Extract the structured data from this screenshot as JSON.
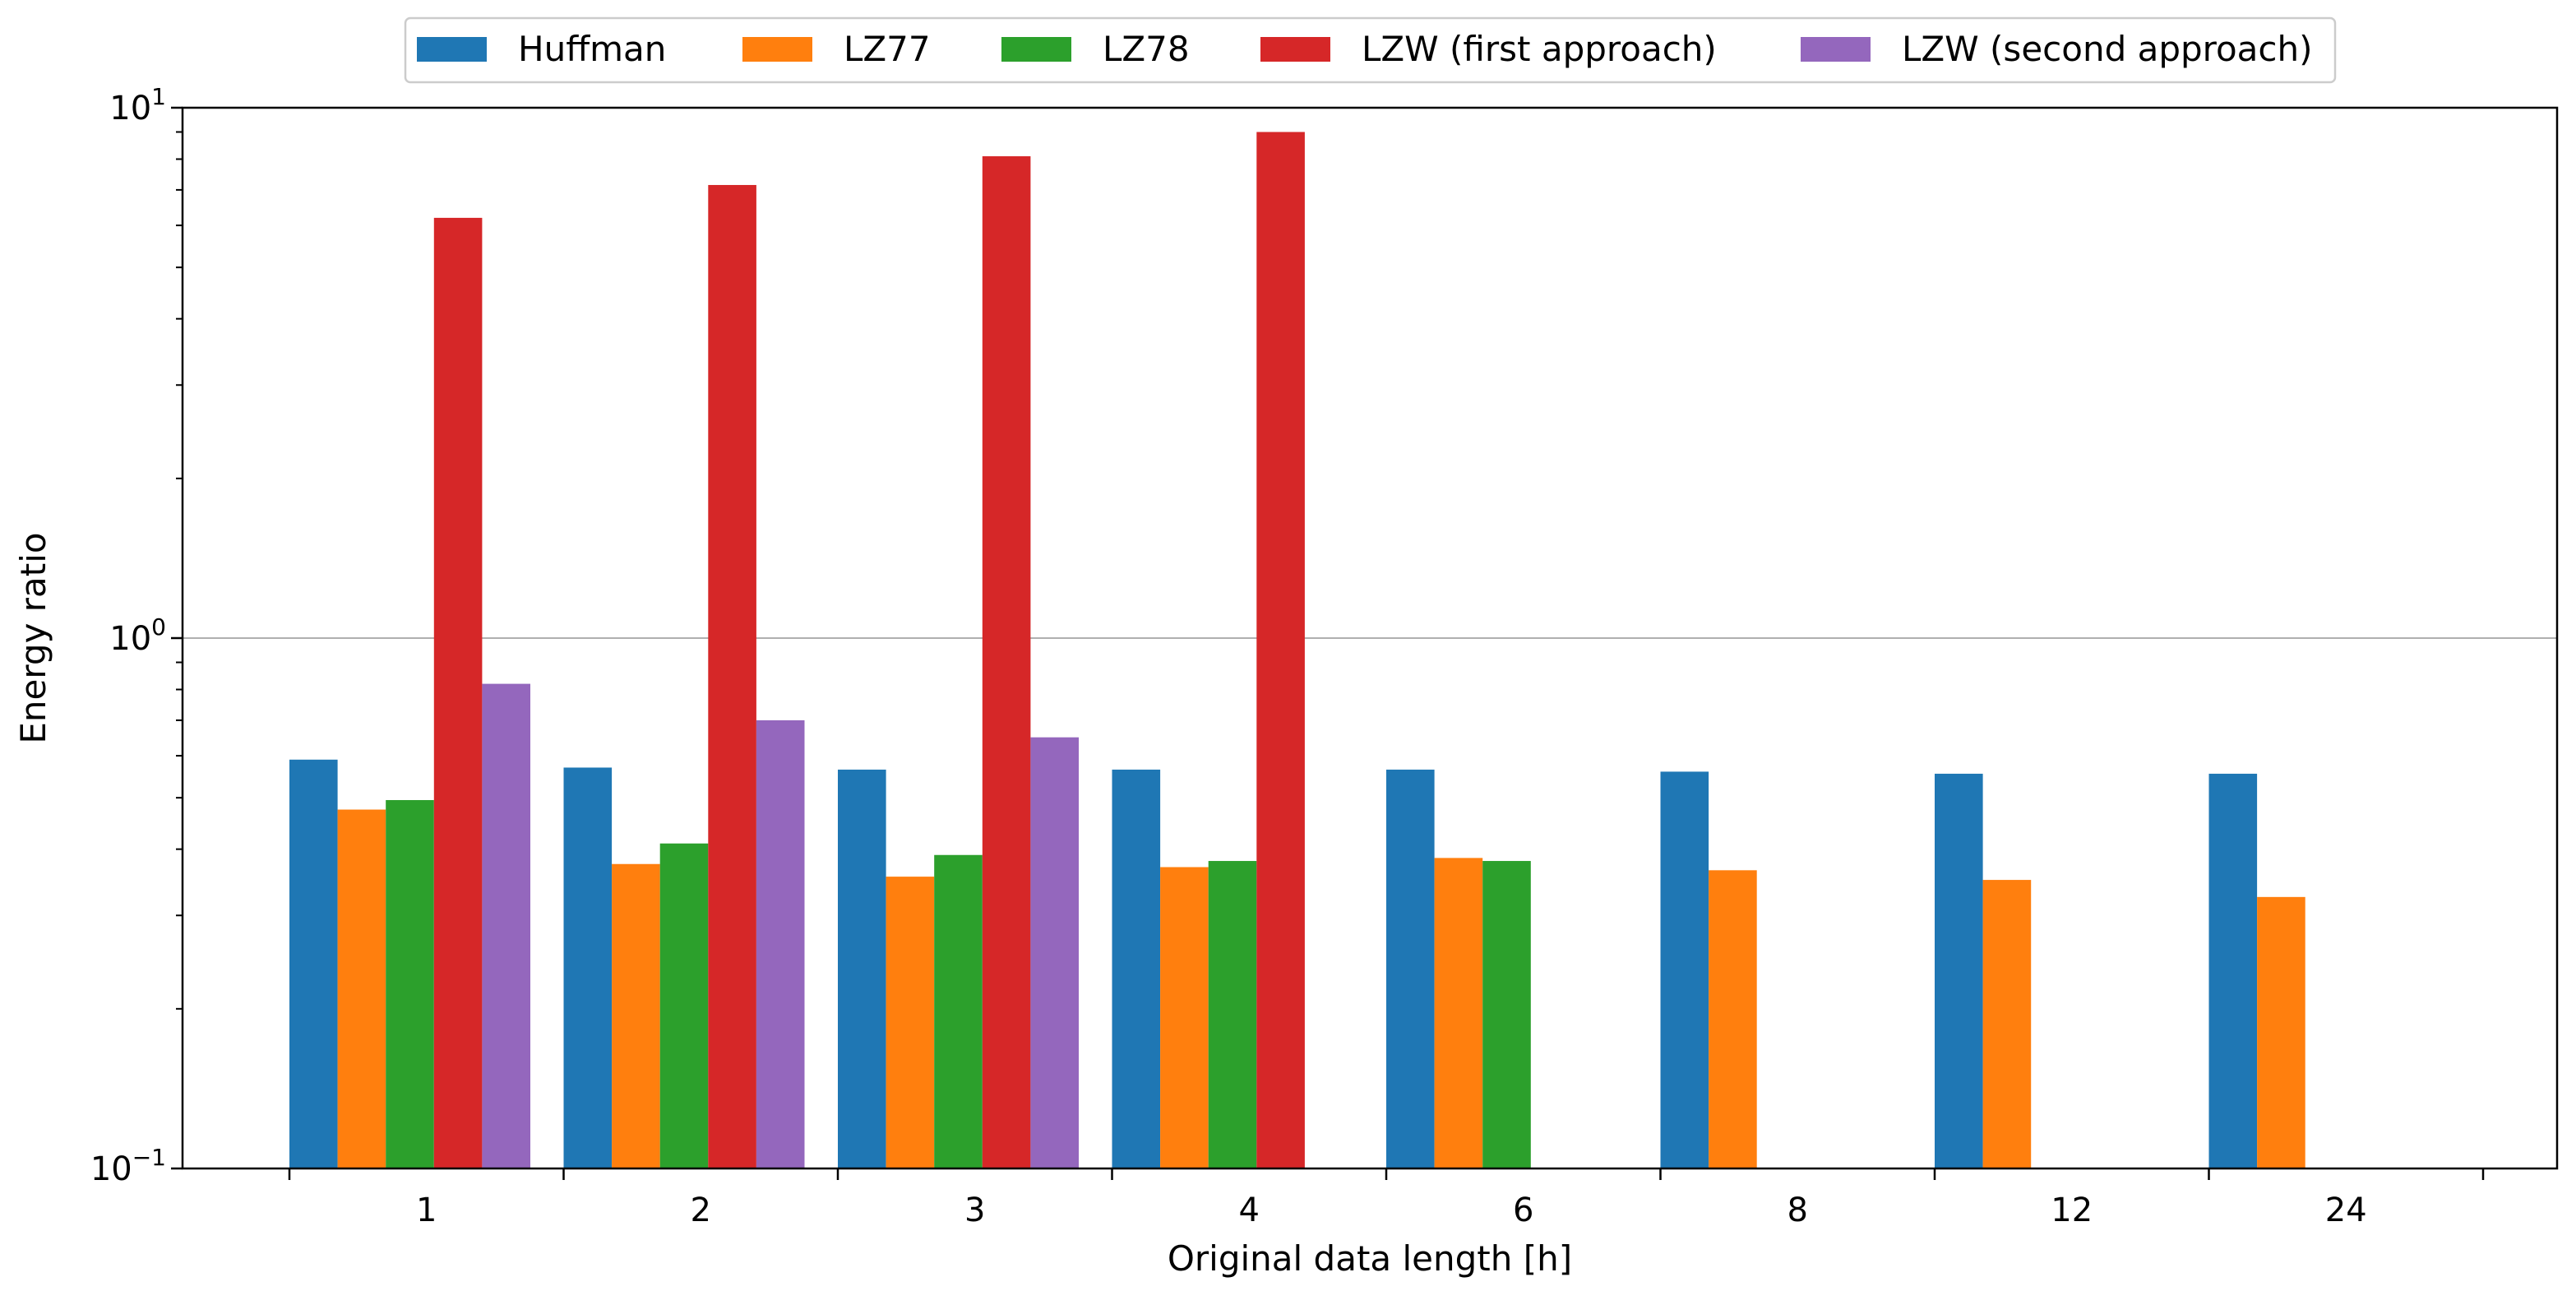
{
  "chart_data": {
    "type": "bar",
    "xlabel": "Original data length [h]",
    "ylabel": "Energy ratio",
    "yscale": "log",
    "ylim": [
      0.1,
      10
    ],
    "y_ticks": [
      {
        "value": 0.1,
        "base": "10",
        "exp": "−1"
      },
      {
        "value": 1,
        "base": "10",
        "exp": "0"
      },
      {
        "value": 10,
        "base": "10",
        "exp": "1"
      }
    ],
    "grid": "horizontal at 10^0",
    "legend_position": "top-center",
    "categories": [
      "1",
      "2",
      "3",
      "4",
      "6",
      "8",
      "12",
      "24"
    ],
    "series": [
      {
        "name": "Huffman",
        "color": "#1f77b4",
        "values": [
          0.59,
          0.57,
          0.565,
          0.565,
          0.565,
          0.56,
          0.555,
          0.555
        ]
      },
      {
        "name": "LZ77",
        "color": "#ff7f0e",
        "values": [
          0.475,
          0.375,
          0.355,
          0.37,
          0.385,
          0.365,
          0.35,
          0.325
        ]
      },
      {
        "name": "LZ78",
        "color": "#2ca02c",
        "values": [
          0.495,
          0.41,
          0.39,
          0.38,
          0.38,
          null,
          null,
          null
        ]
      },
      {
        "name": "LZW (first approach)",
        "color": "#d62728",
        "values": [
          6.2,
          7.15,
          8.1,
          9.0,
          null,
          null,
          null,
          null
        ]
      },
      {
        "name": "LZW (second approach)",
        "color": "#9467bd",
        "values": [
          0.82,
          0.7,
          0.65,
          null,
          null,
          null,
          null,
          null
        ]
      }
    ]
  }
}
